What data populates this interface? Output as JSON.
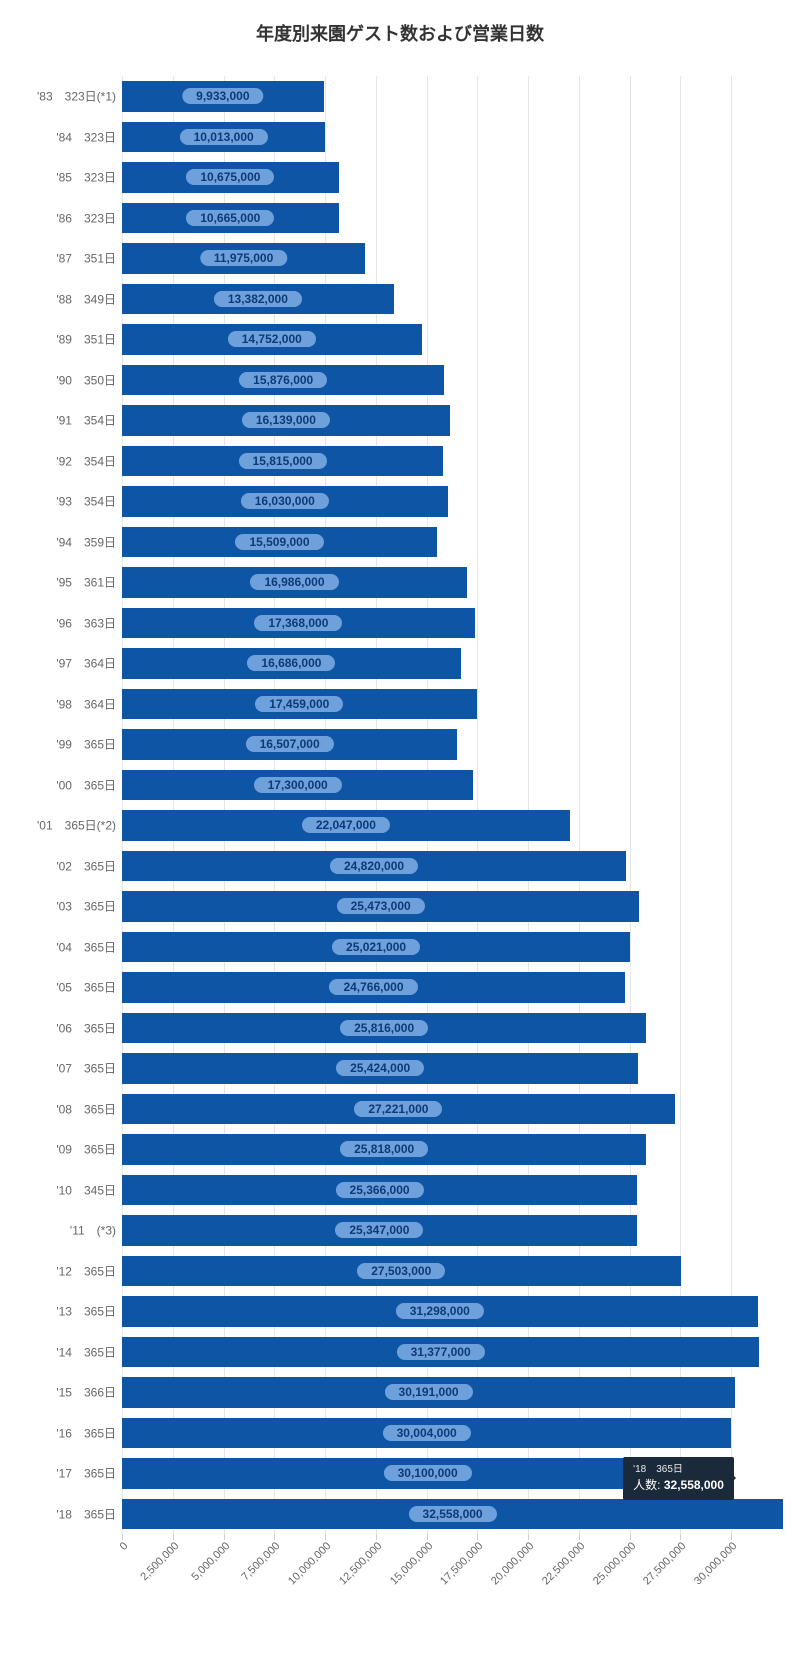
{
  "chart": {
    "type": "bar-horizontal",
    "title": "年度別来園ゲスト数および営業日数",
    "title_fontsize": 18,
    "background_color": "#ffffff",
    "grid_color": "#e6e6e6",
    "label_color": "#666666",
    "label_fontsize": 12,
    "bar_color": "#0f55a6",
    "badge_bg": "#6ea1dc",
    "badge_text_color": "#0b3a78",
    "x_axis": {
      "min": 0,
      "max": 32500000,
      "ticks": [
        0,
        2500000,
        5000000,
        7500000,
        10000000,
        12500000,
        15000000,
        17500000,
        20000000,
        22500000,
        25000000,
        27500000,
        30000000
      ],
      "tick_labels": [
        "0",
        "2,500,000",
        "5,000,000",
        "7,500,000",
        "10,000,000",
        "12,500,000",
        "15,000,000",
        "17,500,000",
        "20,000,000",
        "22,500,000",
        "25,000,000",
        "27,500,000",
        "30,000,000"
      ]
    },
    "tooltip": {
      "category_label": "'18　365日",
      "series_label": "人数:",
      "value_label": "32,558,000",
      "bg": "#1a2a3a",
      "text_color": "#ffffff",
      "target_row_index": 35
    },
    "rows": [
      {
        "category": "'83　323日(*1)",
        "value": 9933000,
        "value_label": "9,933,000"
      },
      {
        "category": "'84　323日",
        "value": 10013000,
        "value_label": "10,013,000"
      },
      {
        "category": "'85　323日",
        "value": 10675000,
        "value_label": "10,675,000"
      },
      {
        "category": "'86　323日",
        "value": 10665000,
        "value_label": "10,665,000"
      },
      {
        "category": "'87　351日",
        "value": 11975000,
        "value_label": "11,975,000"
      },
      {
        "category": "'88　349日",
        "value": 13382000,
        "value_label": "13,382,000"
      },
      {
        "category": "'89　351日",
        "value": 14752000,
        "value_label": "14,752,000"
      },
      {
        "category": "'90　350日",
        "value": 15876000,
        "value_label": "15,876,000"
      },
      {
        "category": "'91　354日",
        "value": 16139000,
        "value_label": "16,139,000"
      },
      {
        "category": "'92　354日",
        "value": 15815000,
        "value_label": "15,815,000"
      },
      {
        "category": "'93　354日",
        "value": 16030000,
        "value_label": "16,030,000"
      },
      {
        "category": "'94　359日",
        "value": 15509000,
        "value_label": "15,509,000"
      },
      {
        "category": "'95　361日",
        "value": 16986000,
        "value_label": "16,986,000"
      },
      {
        "category": "'96　363日",
        "value": 17368000,
        "value_label": "17,368,000"
      },
      {
        "category": "'97　364日",
        "value": 16686000,
        "value_label": "16,686,000"
      },
      {
        "category": "'98　364日",
        "value": 17459000,
        "value_label": "17,459,000"
      },
      {
        "category": "'99　365日",
        "value": 16507000,
        "value_label": "16,507,000"
      },
      {
        "category": "'00　365日",
        "value": 17300000,
        "value_label": "17,300,000"
      },
      {
        "category": "'01　365日(*2)",
        "value": 22047000,
        "value_label": "22,047,000"
      },
      {
        "category": "'02　365日",
        "value": 24820000,
        "value_label": "24,820,000"
      },
      {
        "category": "'03　365日",
        "value": 25473000,
        "value_label": "25,473,000"
      },
      {
        "category": "'04　365日",
        "value": 25021000,
        "value_label": "25,021,000"
      },
      {
        "category": "'05　365日",
        "value": 24766000,
        "value_label": "24,766,000"
      },
      {
        "category": "'06　365日",
        "value": 25816000,
        "value_label": "25,816,000"
      },
      {
        "category": "'07　365日",
        "value": 25424000,
        "value_label": "25,424,000"
      },
      {
        "category": "'08　365日",
        "value": 27221000,
        "value_label": "27,221,000"
      },
      {
        "category": "'09　365日",
        "value": 25818000,
        "value_label": "25,818,000"
      },
      {
        "category": "'10　345日",
        "value": 25366000,
        "value_label": "25,366,000"
      },
      {
        "category": "'11　(*3)",
        "value": 25347000,
        "value_label": "25,347,000"
      },
      {
        "category": "'12　365日",
        "value": 27503000,
        "value_label": "27,503,000"
      },
      {
        "category": "'13　365日",
        "value": 31298000,
        "value_label": "31,298,000"
      },
      {
        "category": "'14　365日",
        "value": 31377000,
        "value_label": "31,377,000"
      },
      {
        "category": "'15　366日",
        "value": 30191000,
        "value_label": "30,191,000"
      },
      {
        "category": "'16　365日",
        "value": 30004000,
        "value_label": "30,004,000"
      },
      {
        "category": "'17　365日",
        "value": 30100000,
        "value_label": "30,100,000"
      },
      {
        "category": "'18　365日",
        "value": 32558000,
        "value_label": "32,558,000"
      }
    ]
  }
}
